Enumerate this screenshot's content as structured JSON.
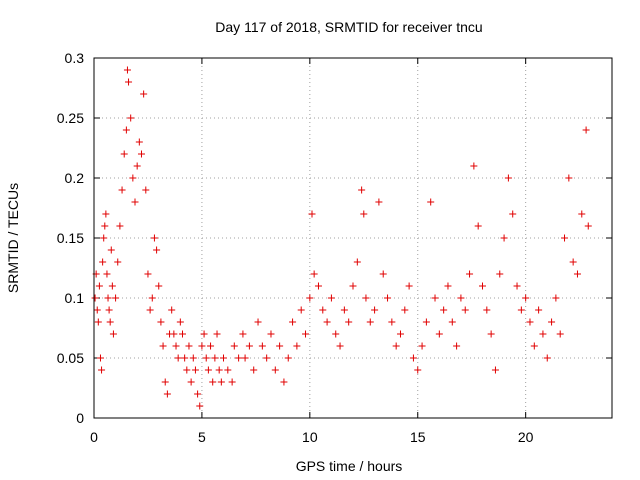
{
  "chart_data": {
    "type": "scatter",
    "title": "Day 117 of 2018, SRMTID for receiver tncu",
    "xlabel": "GPS time / hours",
    "ylabel": "SRMTID / TECUs",
    "xlim": [
      0,
      24
    ],
    "ylim": [
      0,
      0.3
    ],
    "xticks": [
      0,
      5,
      10,
      15,
      20
    ],
    "yticks": [
      0,
      0.05,
      0.1,
      0.15,
      0.2,
      0.25,
      0.3
    ],
    "xtick_labels": [
      "0",
      "5",
      "10",
      "15",
      "20"
    ],
    "ytick_labels": [
      "0",
      "0.05",
      "0.1",
      "0.15",
      "0.2",
      "0.25",
      "0.3"
    ],
    "grid": true,
    "marker": "+",
    "marker_color": "#e00000",
    "series": [
      {
        "name": "SRMTID",
        "points": [
          [
            0.05,
            0.1
          ],
          [
            0.1,
            0.12
          ],
          [
            0.15,
            0.09
          ],
          [
            0.2,
            0.08
          ],
          [
            0.25,
            0.11
          ],
          [
            0.3,
            0.05
          ],
          [
            0.35,
            0.04
          ],
          [
            0.4,
            0.13
          ],
          [
            0.45,
            0.15
          ],
          [
            0.5,
            0.16
          ],
          [
            0.55,
            0.17
          ],
          [
            0.6,
            0.12
          ],
          [
            0.65,
            0.1
          ],
          [
            0.7,
            0.09
          ],
          [
            0.75,
            0.08
          ],
          [
            0.8,
            0.14
          ],
          [
            0.85,
            0.11
          ],
          [
            0.9,
            0.07
          ],
          [
            1.0,
            0.1
          ],
          [
            1.1,
            0.13
          ],
          [
            1.2,
            0.16
          ],
          [
            1.3,
            0.19
          ],
          [
            1.4,
            0.22
          ],
          [
            1.5,
            0.24
          ],
          [
            1.55,
            0.29
          ],
          [
            1.6,
            0.28
          ],
          [
            1.7,
            0.25
          ],
          [
            1.8,
            0.2
          ],
          [
            1.9,
            0.18
          ],
          [
            2.0,
            0.21
          ],
          [
            2.1,
            0.23
          ],
          [
            2.2,
            0.22
          ],
          [
            2.3,
            0.27
          ],
          [
            2.4,
            0.19
          ],
          [
            2.5,
            0.12
          ],
          [
            2.6,
            0.09
          ],
          [
            2.7,
            0.1
          ],
          [
            2.8,
            0.15
          ],
          [
            2.9,
            0.14
          ],
          [
            3.0,
            0.11
          ],
          [
            3.1,
            0.08
          ],
          [
            3.2,
            0.06
          ],
          [
            3.3,
            0.03
          ],
          [
            3.4,
            0.02
          ],
          [
            3.5,
            0.07
          ],
          [
            3.6,
            0.09
          ],
          [
            3.7,
            0.07
          ],
          [
            3.8,
            0.06
          ],
          [
            3.9,
            0.05
          ],
          [
            4.0,
            0.08
          ],
          [
            4.1,
            0.07
          ],
          [
            4.2,
            0.05
          ],
          [
            4.3,
            0.04
          ],
          [
            4.4,
            0.06
          ],
          [
            4.5,
            0.03
          ],
          [
            4.6,
            0.05
          ],
          [
            4.7,
            0.04
          ],
          [
            4.8,
            0.02
          ],
          [
            4.9,
            0.01
          ],
          [
            5.0,
            0.06
          ],
          [
            5.1,
            0.07
          ],
          [
            5.2,
            0.05
          ],
          [
            5.3,
            0.04
          ],
          [
            5.4,
            0.06
          ],
          [
            5.5,
            0.03
          ],
          [
            5.6,
            0.05
          ],
          [
            5.7,
            0.07
          ],
          [
            5.8,
            0.04
          ],
          [
            5.9,
            0.03
          ],
          [
            6.0,
            0.05
          ],
          [
            6.2,
            0.04
          ],
          [
            6.4,
            0.03
          ],
          [
            6.5,
            0.06
          ],
          [
            6.7,
            0.05
          ],
          [
            6.9,
            0.07
          ],
          [
            7.0,
            0.05
          ],
          [
            7.2,
            0.06
          ],
          [
            7.4,
            0.04
          ],
          [
            7.6,
            0.08
          ],
          [
            7.8,
            0.06
          ],
          [
            8.0,
            0.05
          ],
          [
            8.2,
            0.07
          ],
          [
            8.4,
            0.04
          ],
          [
            8.6,
            0.06
          ],
          [
            8.8,
            0.03
          ],
          [
            9.0,
            0.05
          ],
          [
            9.2,
            0.08
          ],
          [
            9.4,
            0.06
          ],
          [
            9.6,
            0.09
          ],
          [
            9.8,
            0.07
          ],
          [
            10.0,
            0.1
          ],
          [
            10.1,
            0.17
          ],
          [
            10.2,
            0.12
          ],
          [
            10.4,
            0.11
          ],
          [
            10.6,
            0.09
          ],
          [
            10.8,
            0.08
          ],
          [
            11.0,
            0.1
          ],
          [
            11.2,
            0.07
          ],
          [
            11.4,
            0.06
          ],
          [
            11.6,
            0.09
          ],
          [
            11.8,
            0.08
          ],
          [
            12.0,
            0.11
          ],
          [
            12.2,
            0.13
          ],
          [
            12.4,
            0.19
          ],
          [
            12.5,
            0.17
          ],
          [
            12.6,
            0.1
          ],
          [
            12.8,
            0.08
          ],
          [
            13.0,
            0.09
          ],
          [
            13.2,
            0.18
          ],
          [
            13.4,
            0.12
          ],
          [
            13.6,
            0.1
          ],
          [
            13.8,
            0.08
          ],
          [
            14.0,
            0.06
          ],
          [
            14.2,
            0.07
          ],
          [
            14.4,
            0.09
          ],
          [
            14.6,
            0.11
          ],
          [
            14.8,
            0.05
          ],
          [
            15.0,
            0.04
          ],
          [
            15.2,
            0.06
          ],
          [
            15.4,
            0.08
          ],
          [
            15.6,
            0.18
          ],
          [
            15.8,
            0.1
          ],
          [
            16.0,
            0.07
          ],
          [
            16.2,
            0.09
          ],
          [
            16.4,
            0.11
          ],
          [
            16.6,
            0.08
          ],
          [
            16.8,
            0.06
          ],
          [
            17.0,
            0.1
          ],
          [
            17.2,
            0.09
          ],
          [
            17.4,
            0.12
          ],
          [
            17.6,
            0.21
          ],
          [
            17.8,
            0.16
          ],
          [
            18.0,
            0.11
          ],
          [
            18.2,
            0.09
          ],
          [
            18.4,
            0.07
          ],
          [
            18.6,
            0.04
          ],
          [
            18.8,
            0.12
          ],
          [
            19.0,
            0.15
          ],
          [
            19.2,
            0.2
          ],
          [
            19.4,
            0.17
          ],
          [
            19.6,
            0.11
          ],
          [
            19.8,
            0.09
          ],
          [
            20.0,
            0.1
          ],
          [
            20.2,
            0.08
          ],
          [
            20.4,
            0.06
          ],
          [
            20.6,
            0.09
          ],
          [
            20.8,
            0.07
          ],
          [
            21.0,
            0.05
          ],
          [
            21.2,
            0.08
          ],
          [
            21.4,
            0.1
          ],
          [
            21.6,
            0.07
          ],
          [
            21.8,
            0.15
          ],
          [
            22.0,
            0.2
          ],
          [
            22.2,
            0.13
          ],
          [
            22.4,
            0.12
          ],
          [
            22.6,
            0.17
          ],
          [
            22.8,
            0.24
          ],
          [
            22.9,
            0.16
          ]
        ]
      }
    ]
  }
}
